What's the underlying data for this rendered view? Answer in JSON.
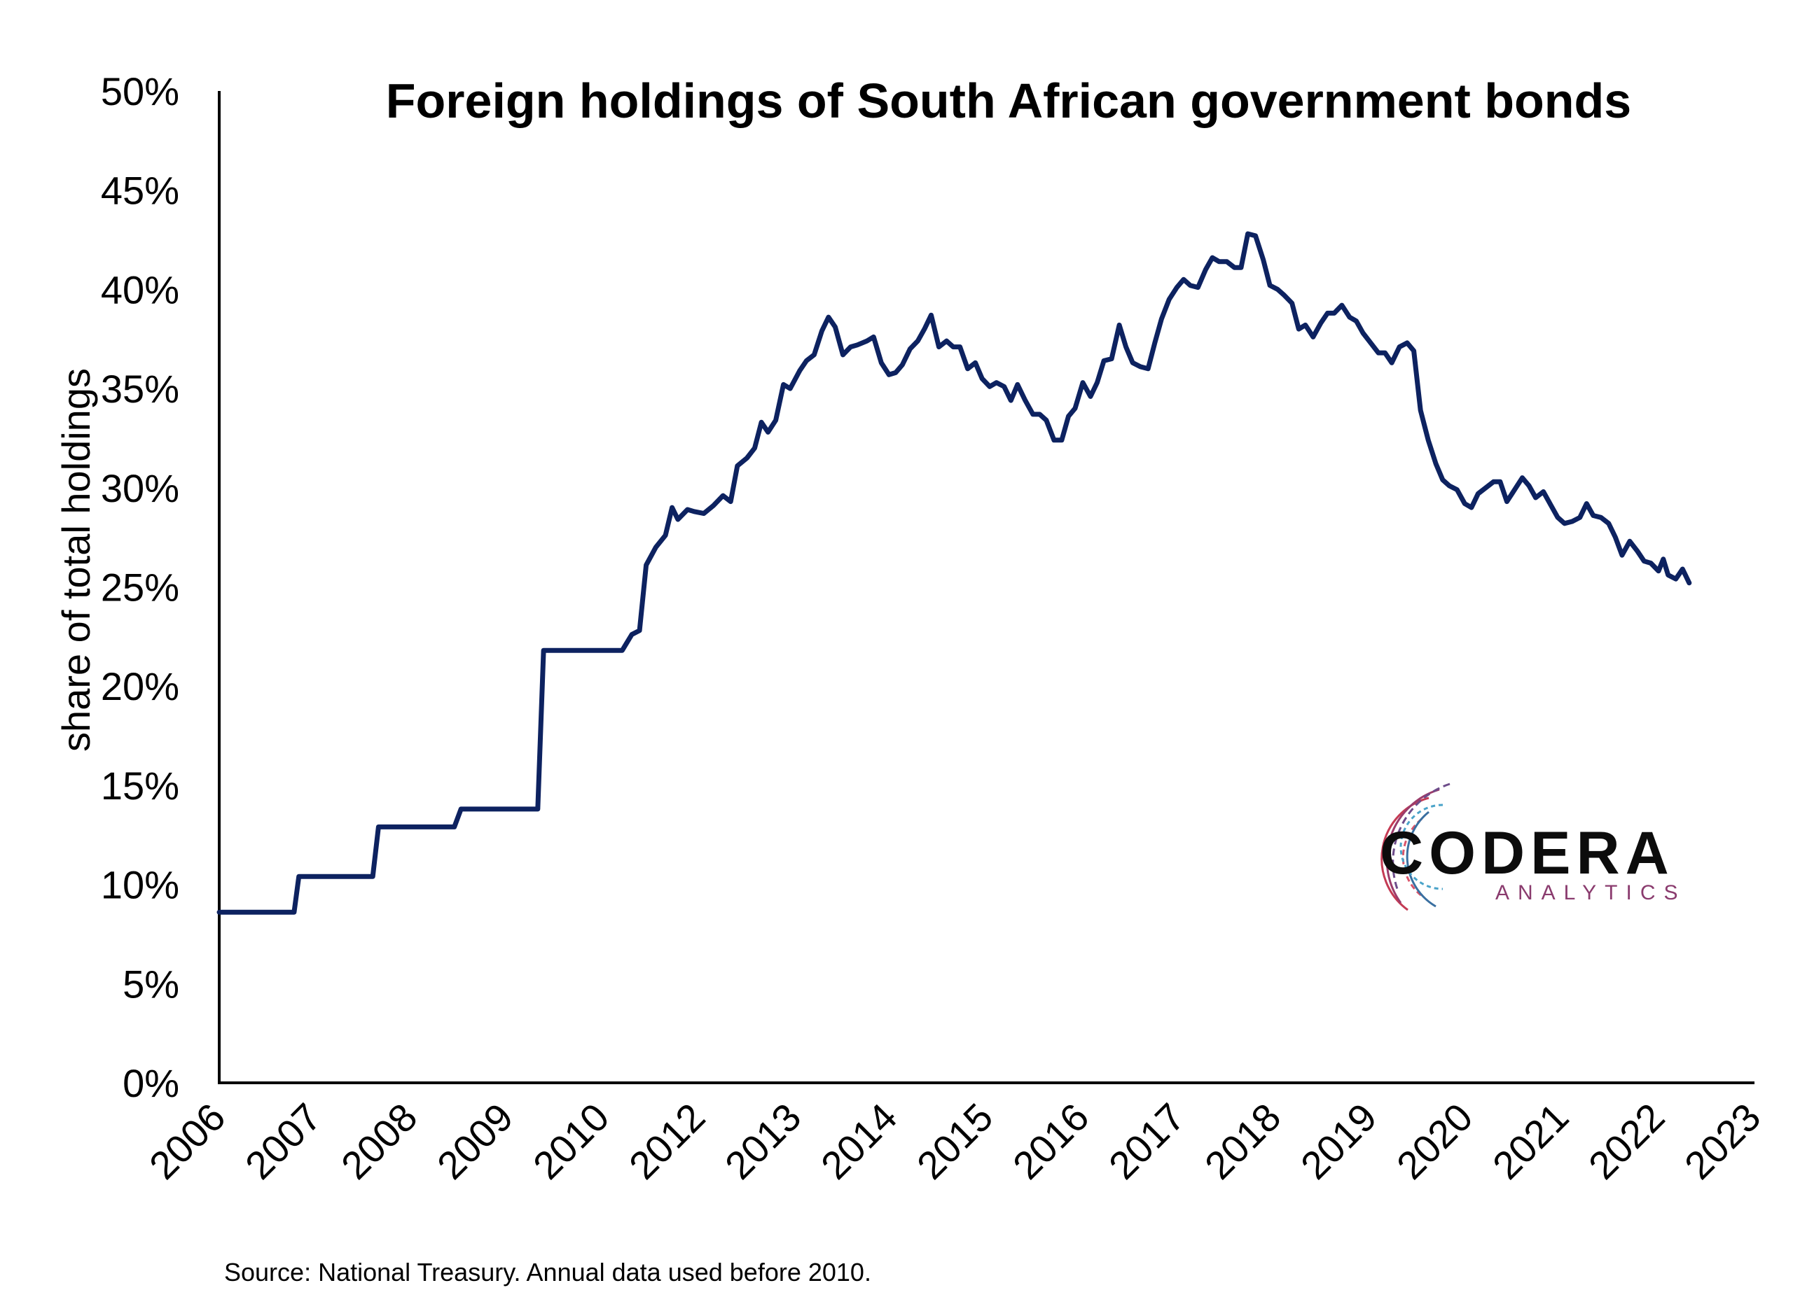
{
  "chart_data": {
    "type": "line",
    "title": "Foreign holdings of South African government bonds",
    "ylabel": "share of total holdings",
    "xlabel": "",
    "source": "Source: National Treasury. Annual data used before 2010.",
    "ylim": [
      0,
      50
    ],
    "yticks": [
      "0%",
      "5%",
      "10%",
      "15%",
      "20%",
      "25%",
      "30%",
      "35%",
      "40%",
      "45%",
      "50%"
    ],
    "xticks": [
      "2006",
      "2007",
      "2008",
      "2009",
      "2010",
      "2012",
      "2013",
      "2014",
      "2015",
      "2016",
      "2017",
      "2018",
      "2019",
      "2020",
      "2021",
      "2022",
      "2023"
    ],
    "grid": false,
    "legend": "none",
    "line_color": "#0d2260",
    "series": [
      {
        "points": [
          [
            0.0,
            8.6
          ],
          [
            0.78,
            8.6
          ],
          [
            0.83,
            10.4
          ],
          [
            1.6,
            10.4
          ],
          [
            1.66,
            12.9
          ],
          [
            2.45,
            12.9
          ],
          [
            2.52,
            13.8
          ],
          [
            3.32,
            13.8
          ],
          [
            3.38,
            21.8
          ],
          [
            4.2,
            21.8
          ],
          [
            4.3,
            22.6
          ],
          [
            4.38,
            22.8
          ],
          [
            4.45,
            26.1
          ],
          [
            4.55,
            27.0
          ],
          [
            4.65,
            27.6
          ],
          [
            4.72,
            29.0
          ],
          [
            4.78,
            28.4
          ],
          [
            4.88,
            28.9
          ],
          [
            4.95,
            28.8
          ],
          [
            5.05,
            28.7
          ],
          [
            5.15,
            29.1
          ],
          [
            5.25,
            29.6
          ],
          [
            5.33,
            29.3
          ],
          [
            5.4,
            31.1
          ],
          [
            5.5,
            31.5
          ],
          [
            5.58,
            32.0
          ],
          [
            5.65,
            33.3
          ],
          [
            5.72,
            32.8
          ],
          [
            5.8,
            33.4
          ],
          [
            5.88,
            35.2
          ],
          [
            5.95,
            35.0
          ],
          [
            6.05,
            35.9
          ],
          [
            6.12,
            36.4
          ],
          [
            6.2,
            36.7
          ],
          [
            6.28,
            37.9
          ],
          [
            6.35,
            38.6
          ],
          [
            6.42,
            38.1
          ],
          [
            6.5,
            36.7
          ],
          [
            6.58,
            37.1
          ],
          [
            6.65,
            37.2
          ],
          [
            6.75,
            37.4
          ],
          [
            6.82,
            37.6
          ],
          [
            6.9,
            36.3
          ],
          [
            6.98,
            35.7
          ],
          [
            7.05,
            35.8
          ],
          [
            7.12,
            36.2
          ],
          [
            7.2,
            37.0
          ],
          [
            7.28,
            37.4
          ],
          [
            7.35,
            38.0
          ],
          [
            7.42,
            38.7
          ],
          [
            7.5,
            37.1
          ],
          [
            7.58,
            37.4
          ],
          [
            7.65,
            37.1
          ],
          [
            7.72,
            37.1
          ],
          [
            7.8,
            36.0
          ],
          [
            7.88,
            36.3
          ],
          [
            7.95,
            35.5
          ],
          [
            8.03,
            35.1
          ],
          [
            8.1,
            35.3
          ],
          [
            8.18,
            35.1
          ],
          [
            8.25,
            34.4
          ],
          [
            8.32,
            35.2
          ],
          [
            8.4,
            34.4
          ],
          [
            8.48,
            33.7
          ],
          [
            8.55,
            33.7
          ],
          [
            8.62,
            33.4
          ],
          [
            8.7,
            32.4
          ],
          [
            8.78,
            32.4
          ],
          [
            8.85,
            33.6
          ],
          [
            8.92,
            34.0
          ],
          [
            9.0,
            35.3
          ],
          [
            9.08,
            34.6
          ],
          [
            9.15,
            35.3
          ],
          [
            9.22,
            36.4
          ],
          [
            9.3,
            36.5
          ],
          [
            9.38,
            38.2
          ],
          [
            9.45,
            37.1
          ],
          [
            9.52,
            36.3
          ],
          [
            9.6,
            36.1
          ],
          [
            9.68,
            36.0
          ],
          [
            9.75,
            37.3
          ],
          [
            9.82,
            38.5
          ],
          [
            9.9,
            39.5
          ],
          [
            9.98,
            40.1
          ],
          [
            10.05,
            40.5
          ],
          [
            10.12,
            40.2
          ],
          [
            10.2,
            40.1
          ],
          [
            10.28,
            41.0
          ],
          [
            10.35,
            41.6
          ],
          [
            10.42,
            41.4
          ],
          [
            10.5,
            41.4
          ],
          [
            10.58,
            41.1
          ],
          [
            10.65,
            41.1
          ],
          [
            10.72,
            42.8
          ],
          [
            10.8,
            42.7
          ],
          [
            10.88,
            41.5
          ],
          [
            10.95,
            40.2
          ],
          [
            11.03,
            40.0
          ],
          [
            11.1,
            39.7
          ],
          [
            11.18,
            39.3
          ],
          [
            11.25,
            38.0
          ],
          [
            11.32,
            38.2
          ],
          [
            11.4,
            37.6
          ],
          [
            11.48,
            38.3
          ],
          [
            11.55,
            38.8
          ],
          [
            11.62,
            38.8
          ],
          [
            11.7,
            39.2
          ],
          [
            11.78,
            38.6
          ],
          [
            11.85,
            38.4
          ],
          [
            11.92,
            37.8
          ],
          [
            12.0,
            37.3
          ],
          [
            12.08,
            36.8
          ],
          [
            12.15,
            36.8
          ],
          [
            12.22,
            36.3
          ],
          [
            12.3,
            37.1
          ],
          [
            12.38,
            37.3
          ],
          [
            12.45,
            36.9
          ],
          [
            12.52,
            33.9
          ],
          [
            12.6,
            32.4
          ],
          [
            12.68,
            31.2
          ],
          [
            12.75,
            30.4
          ],
          [
            12.82,
            30.1
          ],
          [
            12.9,
            29.9
          ],
          [
            12.98,
            29.2
          ],
          [
            13.05,
            29.0
          ],
          [
            13.12,
            29.7
          ],
          [
            13.2,
            30.0
          ],
          [
            13.28,
            30.3
          ],
          [
            13.35,
            30.3
          ],
          [
            13.42,
            29.3
          ],
          [
            13.5,
            29.9
          ],
          [
            13.58,
            30.5
          ],
          [
            13.65,
            30.1
          ],
          [
            13.72,
            29.5
          ],
          [
            13.8,
            29.8
          ],
          [
            13.88,
            29.1
          ],
          [
            13.95,
            28.5
          ],
          [
            14.02,
            28.2
          ],
          [
            14.1,
            28.3
          ],
          [
            14.18,
            28.5
          ],
          [
            14.25,
            29.2
          ],
          [
            14.32,
            28.6
          ],
          [
            14.4,
            28.5
          ],
          [
            14.48,
            28.2
          ],
          [
            14.55,
            27.5
          ],
          [
            14.62,
            26.6
          ],
          [
            14.7,
            27.3
          ],
          [
            14.78,
            26.8
          ],
          [
            14.85,
            26.3
          ],
          [
            14.92,
            26.2
          ],
          [
            15.0,
            25.8
          ],
          [
            15.05,
            26.4
          ],
          [
            15.1,
            25.6
          ],
          [
            15.18,
            25.4
          ],
          [
            15.25,
            25.9
          ],
          [
            15.32,
            25.2
          ]
        ]
      }
    ]
  },
  "logo": {
    "name": "CODERA",
    "sub": "ANALYTICS"
  }
}
